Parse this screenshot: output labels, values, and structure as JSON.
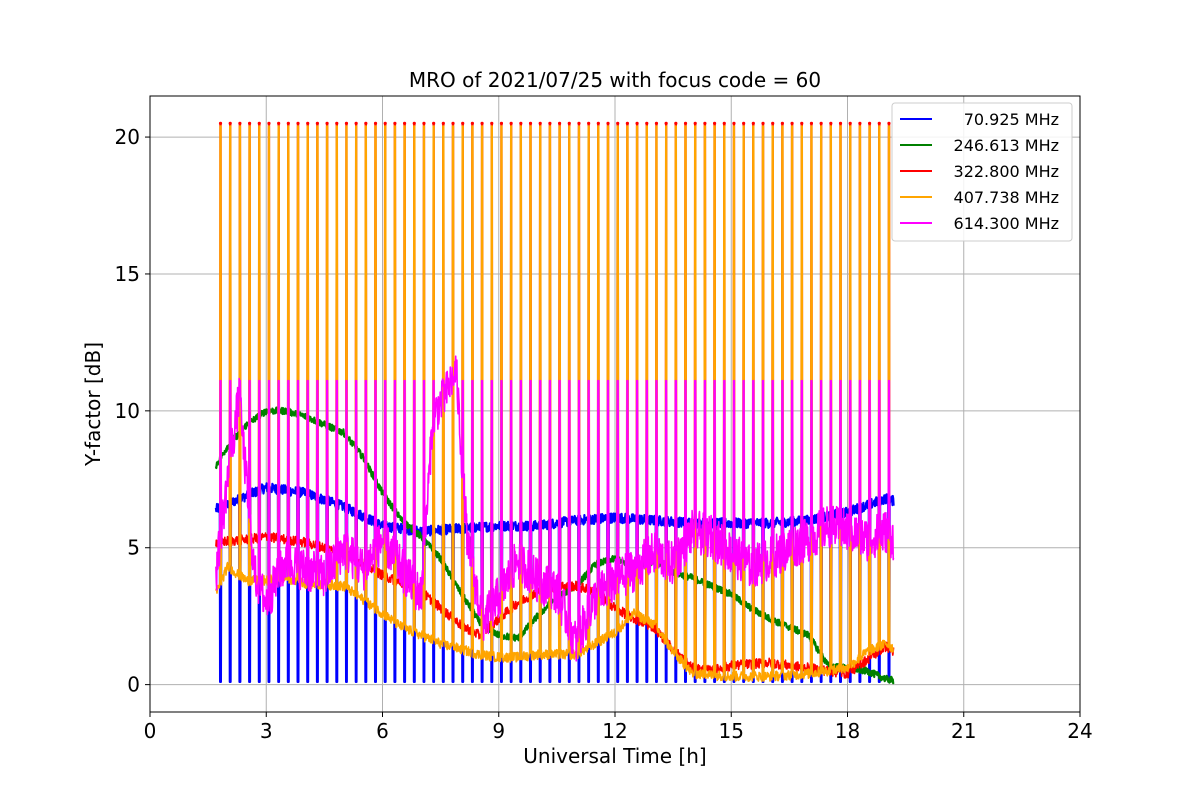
{
  "chart_data": {
    "type": "line",
    "title": "MRO of 2021/07/25 with focus code = 60",
    "xlabel": "Universal Time [h]",
    "ylabel": "Y-factor [dB]",
    "xlim": [
      0,
      24
    ],
    "ylim": [
      -1,
      21.5
    ],
    "x_ticks": [
      0,
      3,
      6,
      9,
      12,
      15,
      18,
      21,
      24
    ],
    "y_ticks": [
      0,
      5,
      10,
      15,
      20
    ],
    "grid": true,
    "legend_position": "top-right",
    "time_range_h": [
      1.7,
      19.2
    ],
    "pulse_period_h": 0.25,
    "series": [
      {
        "name": "70.925 MHz",
        "color": "#0000ff",
        "pulse_floor_db": 0.1,
        "baseline": {
          "x": [
            1.7,
            2.5,
            3.0,
            4.0,
            5.0,
            6.0,
            7.0,
            8.0,
            9.0,
            10.0,
            11.0,
            12.0,
            13.0,
            14.0,
            15.0,
            16.0,
            17.0,
            18.0,
            19.0,
            19.2
          ],
          "y": [
            6.4,
            6.9,
            7.2,
            7.0,
            6.5,
            5.8,
            5.6,
            5.7,
            5.8,
            5.8,
            6.0,
            6.1,
            6.0,
            5.9,
            5.9,
            5.9,
            6.0,
            6.3,
            6.8,
            6.7
          ]
        }
      },
      {
        "name": "246.613 MHz",
        "color": "#008000",
        "baseline": {
          "x": [
            1.7,
            2.0,
            2.5,
            3.0,
            3.5,
            4.0,
            4.5,
            5.0,
            5.5,
            6.0,
            6.5,
            7.0,
            7.5,
            8.0,
            8.5,
            9.0,
            9.5,
            10.0,
            10.5,
            11.0,
            11.5,
            12.0,
            12.5,
            13.0,
            13.5,
            14.0,
            14.5,
            15.0,
            15.5,
            16.0,
            16.5,
            17.0,
            17.5,
            18.0,
            18.5,
            19.0,
            19.2
          ],
          "y": [
            8.0,
            8.7,
            9.5,
            10.0,
            10.0,
            9.8,
            9.5,
            9.2,
            8.3,
            7.0,
            6.0,
            5.4,
            4.6,
            3.4,
            2.3,
            1.8,
            1.7,
            2.5,
            3.2,
            3.6,
            4.4,
            4.6,
            4.3,
            4.5,
            4.1,
            3.9,
            3.6,
            3.3,
            2.8,
            2.4,
            2.1,
            1.8,
            0.7,
            0.6,
            0.5,
            0.2,
            0.15
          ]
        }
      },
      {
        "name": "322.800 MHz",
        "color": "#ff0000",
        "pulse_peak_db": 20.45,
        "baseline": {
          "x": [
            1.7,
            2.5,
            3.0,
            4.0,
            5.0,
            6.0,
            7.0,
            7.5,
            8.0,
            8.5,
            9.0,
            9.5,
            10.0,
            10.5,
            11.0,
            11.5,
            12.0,
            12.5,
            13.0,
            13.5,
            14.0,
            14.5,
            15.0,
            16.0,
            17.0,
            18.0,
            19.0,
            19.2
          ],
          "y": [
            5.2,
            5.3,
            5.4,
            5.2,
            4.8,
            4.0,
            3.4,
            2.8,
            2.2,
            1.8,
            2.4,
            3.0,
            3.4,
            3.6,
            3.6,
            3.4,
            2.8,
            2.4,
            2.1,
            1.3,
            0.6,
            0.5,
            0.7,
            0.8,
            0.6,
            0.4,
            1.4,
            1.2
          ]
        }
      },
      {
        "name": "407.738 MHz",
        "color": "#ffa500",
        "pulse_peak_db": 20.4,
        "baseline": {
          "x": [
            1.7,
            2.0,
            2.5,
            3.0,
            3.5,
            4.0,
            5.0,
            6.0,
            6.5,
            7.0,
            7.5,
            8.0,
            8.5,
            9.0,
            9.5,
            10.0,
            11.0,
            12.0,
            12.5,
            13.0,
            13.5,
            14.0,
            15.0,
            16.0,
            17.0,
            18.0,
            18.5,
            19.0,
            19.2
          ],
          "y": [
            3.3,
            4.3,
            3.8,
            3.8,
            3.9,
            3.7,
            3.6,
            2.6,
            2.1,
            1.8,
            1.5,
            1.3,
            1.1,
            1.0,
            1.0,
            1.1,
            1.1,
            1.9,
            2.6,
            2.2,
            1.2,
            0.4,
            0.3,
            0.3,
            0.4,
            0.6,
            1.2,
            1.5,
            1.3
          ]
        }
      },
      {
        "name": "614.300 MHz",
        "color": "#ff00ff",
        "pulse_peak_db": 11.1,
        "baseline": {
          "x": [
            1.7,
            2.0,
            2.3,
            2.7,
            3.0,
            3.5,
            4.0,
            4.5,
            5.0,
            5.5,
            6.0,
            6.5,
            7.0,
            7.3,
            7.6,
            7.9,
            8.2,
            8.6,
            9.0,
            9.5,
            10.0,
            10.5,
            11.0,
            11.5,
            12.0,
            12.5,
            13.0,
            13.5,
            14.0,
            14.5,
            15.0,
            15.5,
            16.0,
            16.5,
            17.0,
            17.5,
            18.0,
            18.5,
            19.0,
            19.2
          ],
          "y": [
            4.0,
            7.5,
            10.5,
            4.0,
            3.0,
            4.5,
            4.2,
            3.9,
            5.0,
            4.2,
            5.3,
            4.2,
            3.2,
            9.8,
            10.5,
            11.5,
            5.0,
            2.3,
            3.2,
            4.6,
            3.8,
            3.4,
            1.5,
            3.2,
            3.8,
            4.2,
            4.8,
            4.4,
            5.6,
            5.4,
            4.8,
            4.3,
            4.6,
            5.0,
            5.3,
            5.8,
            5.6,
            5.3,
            5.6,
            5.3
          ]
        }
      }
    ]
  }
}
